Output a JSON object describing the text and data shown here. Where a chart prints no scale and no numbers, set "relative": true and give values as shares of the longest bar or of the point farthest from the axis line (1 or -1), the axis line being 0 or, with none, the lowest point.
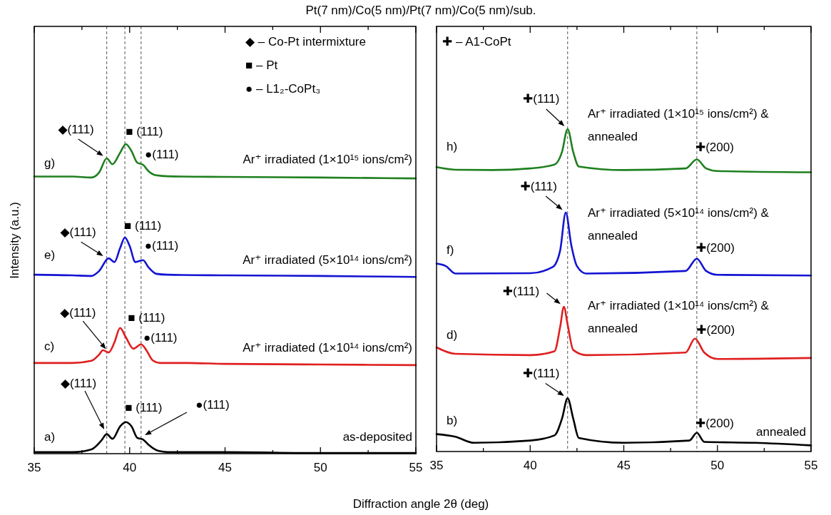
{
  "chart_data": [
    {
      "type": "line",
      "title": "Pt(7 nm)/Co(5 nm)/Pt(7 nm)/Co(5 nm)/sub.",
      "xlabel": "Diffraction angle 2θ (deg)",
      "ylabel": "Intensity (a.u.)",
      "relative": true,
      "tick_labels": "x",
      "xlim": [
        35,
        55
      ],
      "xticks": [
        35,
        {
          "value": 37.5,
          "label": null
        },
        40,
        {
          "value": 42.5,
          "label": null
        },
        45,
        {
          "value": 47.5,
          "label": null
        },
        50,
        {
          "value": 52.5,
          "label": null
        },
        55
      ],
      "ref_lines": [
        {
          "axis": "x",
          "value": 38.8,
          "color": "#555555",
          "line_style": "dashed"
        },
        {
          "axis": "x",
          "value": 39.75,
          "color": "#555555",
          "line_style": "dashed"
        },
        {
          "axis": "x",
          "value": 40.6,
          "color": "#555555",
          "line_style": "dashed"
        }
      ],
      "series": [
        {
          "name": "Ar⁺ irradiated (1×10¹⁵ ions/cm²)",
          "color": "#1f801f",
          "x": [
            35,
            37,
            38,
            38.4,
            38.8,
            39.1,
            39.5,
            39.8,
            40.1,
            40.4,
            40.7,
            41,
            41.4,
            42,
            45,
            50,
            55
          ],
          "values": [
            0.895,
            0.895,
            0.892,
            0.908,
            0.954,
            0.935,
            0.972,
            1.0,
            0.977,
            0.94,
            0.933,
            0.912,
            0.899,
            0.896,
            0.894,
            0.892,
            0.889
          ]
        },
        {
          "name": "Ar⁺ irradiated (5×10¹⁴ ions/cm²)",
          "color": "#1414d2",
          "x": [
            35,
            37,
            38,
            38.4,
            38.9,
            39.2,
            39.5,
            39.75,
            40,
            40.3,
            40.7,
            41,
            41.4,
            42,
            45,
            50,
            55
          ],
          "values": [
            0.578,
            0.576,
            0.574,
            0.59,
            0.631,
            0.619,
            0.664,
            0.698,
            0.671,
            0.619,
            0.625,
            0.601,
            0.581,
            0.578,
            0.576,
            0.574,
            0.571
          ]
        },
        {
          "name": "Ar⁺ irradiated (1×10¹⁴ ions/cm²)",
          "color": "#e01f1f",
          "x": [
            35,
            37,
            38,
            38.4,
            38.6,
            38.9,
            39.2,
            39.5,
            39.8,
            40.2,
            40.6,
            40.9,
            41.2,
            41.6,
            43,
            45,
            50,
            55
          ],
          "values": [
            0.293,
            0.293,
            0.3,
            0.32,
            0.334,
            0.327,
            0.359,
            0.406,
            0.376,
            0.339,
            0.353,
            0.332,
            0.302,
            0.293,
            0.293,
            0.29,
            0.288,
            0.286
          ]
        },
        {
          "name": "as-deposited",
          "color": "#000000",
          "x": [
            35,
            37,
            38,
            38.5,
            38.8,
            39.1,
            39.5,
            39.8,
            40.1,
            40.4,
            40.7,
            41,
            41.5,
            42,
            45,
            50,
            55
          ],
          "values": [
            0.005,
            0.005,
            0.014,
            0.041,
            0.063,
            0.048,
            0.088,
            0.102,
            0.088,
            0.051,
            0.046,
            0.028,
            0.009,
            0.005,
            0.005,
            0.002,
            0.002
          ]
        }
      ],
      "annotations": [
        "◆ – Co-Pt intermixture",
        "■ – Pt",
        "● – L1₂-CoPt₃",
        "g)",
        "e)",
        "c)",
        "a)",
        {
          "text": "◆(111)",
          "x": 38.8,
          "y": 0.954
        },
        {
          "text": "■ (111)",
          "x": 39.8,
          "y": 1.0
        },
        {
          "text": "●(111)",
          "x": 40.6,
          "y": 0.933
        },
        {
          "text": "◆(111)",
          "x": 38.8,
          "y": 0.631
        },
        {
          "text": "■ (111)",
          "x": 39.75,
          "y": 0.698
        },
        {
          "text": "●(111)",
          "x": 40.7,
          "y": 0.625
        },
        {
          "text": "◆(111)",
          "x": 38.9,
          "y": 0.327
        },
        {
          "text": "■ (111)",
          "x": 39.5,
          "y": 0.406
        },
        {
          "text": "●(111)",
          "x": 40.6,
          "y": 0.353
        },
        "◆(111)",
        {
          "text": "■ (111)",
          "x": 39.8,
          "y": 0.102
        },
        "●(111)"
      ]
    },
    {
      "type": "line",
      "relative": true,
      "tick_labels": "x",
      "xlim": [
        35,
        55
      ],
      "xticks": [
        35,
        {
          "value": 37.5,
          "label": null
        },
        40,
        {
          "value": 42.5,
          "label": null
        },
        45,
        {
          "value": 47.5,
          "label": null
        },
        50,
        {
          "value": 52.5,
          "label": null
        },
        55
      ],
      "ref_lines": [
        {
          "axis": "x",
          "value": 42.0,
          "color": "#555555",
          "line_style": "dashed"
        },
        {
          "axis": "x",
          "value": 48.9,
          "color": "#555555",
          "line_style": "dashed"
        }
      ],
      "series": [
        {
          "color": "#1f801f",
          "x": [
            35,
            36,
            38,
            40,
            41.3,
            41.7,
            42,
            42.3,
            42.6,
            45,
            48.3,
            48.9,
            49.4,
            50,
            55
          ],
          "values": [
            0.882,
            0.874,
            0.873,
            0.878,
            0.89,
            0.929,
            1.0,
            0.929,
            0.884,
            0.873,
            0.878,
            0.906,
            0.878,
            0.87,
            0.866
          ]
        },
        {
          "color": "#1414d2",
          "x": [
            35,
            35.5,
            36,
            40,
            41.2,
            41.6,
            41.9,
            42.2,
            42.5,
            43,
            48.3,
            48.9,
            49.4,
            50,
            55
          ],
          "values": [
            0.583,
            0.575,
            0.552,
            0.553,
            0.572,
            0.623,
            0.741,
            0.639,
            0.575,
            0.552,
            0.56,
            0.598,
            0.56,
            0.548,
            0.546
          ]
        },
        {
          "color": "#e01f1f",
          "x": [
            35,
            36,
            40,
            41.3,
            41.6,
            41.8,
            42,
            42.3,
            43,
            48.3,
            48.8,
            49.3,
            50,
            55
          ],
          "values": [
            0.323,
            0.303,
            0.299,
            0.311,
            0.386,
            0.449,
            0.394,
            0.315,
            0.299,
            0.307,
            0.35,
            0.307,
            0.287,
            0.29
          ]
        },
        {
          "name": "annealed",
          "color": "#000000",
          "x": [
            35,
            36,
            37,
            40,
            41.3,
            41.7,
            42,
            42.3,
            42.6,
            45,
            48.5,
            48.9,
            49.3,
            52,
            55
          ],
          "values": [
            0.054,
            0.046,
            0.027,
            0.034,
            0.05,
            0.102,
            0.165,
            0.102,
            0.042,
            0.027,
            0.034,
            0.058,
            0.03,
            0.027,
            0.019
          ]
        }
      ],
      "annotations": [
        "✚ – A1-CoPt",
        "h)",
        "f)",
        "d)",
        "b)",
        {
          "text": "✚(111)",
          "x": 42.0,
          "y": 1.0
        },
        {
          "text": "✚(200)",
          "x": 48.9,
          "y": 0.906
        },
        {
          "text": "✚(111)",
          "x": 41.9,
          "y": 0.741
        },
        {
          "text": "✚(200)",
          "x": 48.9,
          "y": 0.598
        },
        {
          "text": "✚(111)",
          "x": 41.8,
          "y": 0.449
        },
        {
          "text": "✚(200)",
          "x": 48.8,
          "y": 0.35
        },
        {
          "text": "✚(111)",
          "x": 42.0,
          "y": 0.165
        },
        {
          "text": "✚(200)",
          "x": 48.9,
          "y": 0.058
        },
        "Ar⁺ irradiated (1×10¹⁵ ions/cm²) & annealed",
        "Ar⁺ irradiated (5×10¹⁴ ions/cm²) & annealed",
        "Ar⁺ irradiated (1×10¹⁴ ions/cm²) & annealed"
      ]
    }
  ]
}
